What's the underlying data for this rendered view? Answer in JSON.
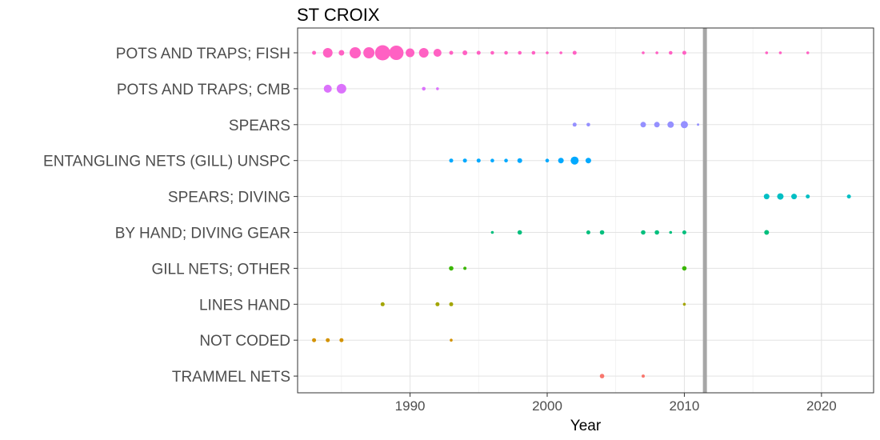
{
  "chart_data": {
    "type": "scatter",
    "title": "ST CROIX",
    "xlabel": "Year",
    "ylabel": "",
    "xlim": [
      1981.8,
      2023.8
    ],
    "xticks": [
      1990,
      2000,
      2010,
      2020
    ],
    "grid": true,
    "legend": "none",
    "vline": 2011.5,
    "categories": [
      "POTS AND TRAPS; FISH",
      "POTS AND TRAPS; CMB",
      "SPEARS",
      "ENTANGLING NETS (GILL) UNSPC",
      "SPEARS; DIVING",
      "BY HAND; DIVING GEAR",
      "GILL NETS; OTHER",
      "LINES HAND",
      "NOT CODED",
      "TRAMMEL NETS"
    ],
    "colors": [
      "#FF61C3",
      "#DB72FB",
      "#9590FF",
      "#00A9FF",
      "#00BFC4",
      "#00BF7D",
      "#39B600",
      "#A3A500",
      "#D39200",
      "#F8766D"
    ],
    "series": [
      {
        "category": "POTS AND TRAPS; FISH",
        "points": [
          [
            1983,
            2.5
          ],
          [
            1984,
            6
          ],
          [
            1985,
            3.5
          ],
          [
            1986,
            7
          ],
          [
            1987,
            7
          ],
          [
            1988,
            9.5
          ],
          [
            1989,
            9
          ],
          [
            1990,
            5.5
          ],
          [
            1991,
            6
          ],
          [
            1992,
            5
          ],
          [
            1993,
            2.5
          ],
          [
            1994,
            3
          ],
          [
            1995,
            2.5
          ],
          [
            1996,
            2.3
          ],
          [
            1997,
            2.3
          ],
          [
            1998,
            2.3
          ],
          [
            1999,
            2.3
          ],
          [
            2000,
            1.8
          ],
          [
            2001,
            1.8
          ],
          [
            2002,
            2.5
          ],
          [
            2007,
            1.8
          ],
          [
            2008,
            1.8
          ],
          [
            2009,
            2.3
          ],
          [
            2010,
            2.5
          ],
          [
            2016,
            1.8
          ],
          [
            2017,
            1.8
          ],
          [
            2019,
            1.8
          ]
        ]
      },
      {
        "category": "POTS AND TRAPS; CMB",
        "points": [
          [
            1984,
            5
          ],
          [
            1985,
            6
          ],
          [
            1991,
            2.3
          ],
          [
            1992,
            1.8
          ]
        ]
      },
      {
        "category": "SPEARS",
        "points": [
          [
            2002,
            2.5
          ],
          [
            2003,
            2.3
          ],
          [
            2007,
            3.5
          ],
          [
            2008,
            3.5
          ],
          [
            2009,
            4
          ],
          [
            2010,
            4.5
          ],
          [
            2011,
            1.5
          ]
        ]
      },
      {
        "category": "ENTANGLING NETS (GILL) UNSPC",
        "points": [
          [
            1993,
            2.5
          ],
          [
            1994,
            2.5
          ],
          [
            1995,
            2.5
          ],
          [
            1996,
            2.3
          ],
          [
            1997,
            2.3
          ],
          [
            1998,
            3
          ],
          [
            2000,
            2.3
          ],
          [
            2001,
            3.5
          ],
          [
            2002,
            5
          ],
          [
            2003,
            3.5
          ]
        ]
      },
      {
        "category": "SPEARS; DIVING",
        "points": [
          [
            2016,
            3.5
          ],
          [
            2017,
            4
          ],
          [
            2018,
            3.5
          ],
          [
            2019,
            2.5
          ],
          [
            2022,
            2.5
          ]
        ]
      },
      {
        "category": "BY HAND; DIVING GEAR",
        "points": [
          [
            1996,
            1.8
          ],
          [
            1998,
            2.8
          ],
          [
            2003,
            2.5
          ],
          [
            2004,
            2.8
          ],
          [
            2007,
            2.8
          ],
          [
            2008,
            2.8
          ],
          [
            2009,
            1.8
          ],
          [
            2010,
            2.5
          ],
          [
            2016,
            3
          ]
        ]
      },
      {
        "category": "GILL NETS; OTHER",
        "points": [
          [
            1993,
            2.8
          ],
          [
            1994,
            2.0
          ],
          [
            2010,
            2.8
          ]
        ]
      },
      {
        "category": "LINES HAND",
        "points": [
          [
            1988,
            2.5
          ],
          [
            1992,
            2.5
          ],
          [
            1993,
            2.5
          ],
          [
            2010,
            1.8
          ]
        ]
      },
      {
        "category": "NOT CODED",
        "points": [
          [
            1983,
            2.5
          ],
          [
            1984,
            2.5
          ],
          [
            1985,
            2.5
          ],
          [
            1993,
            1.8
          ]
        ]
      },
      {
        "category": "TRAMMEL NETS",
        "points": [
          [
            2004,
            2.8
          ],
          [
            2007,
            2.0
          ]
        ]
      }
    ]
  }
}
